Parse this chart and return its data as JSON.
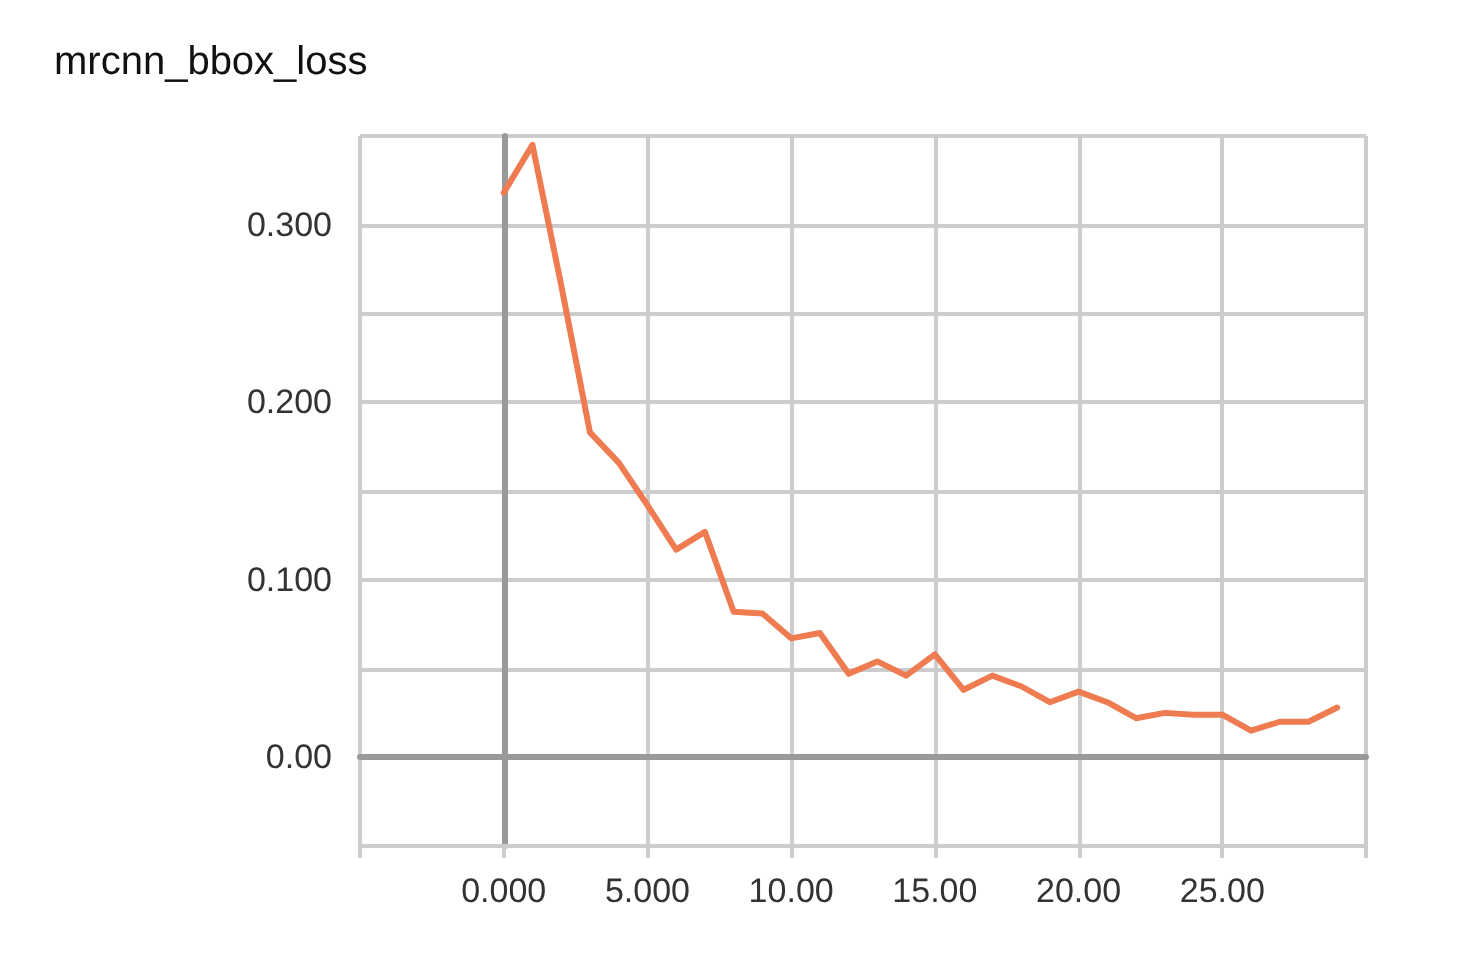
{
  "chart_data": {
    "type": "line",
    "title": "mrcnn_bbox_loss",
    "x": [
      0,
      1,
      2,
      3,
      4,
      5,
      6,
      7,
      8,
      9,
      10,
      11,
      12,
      13,
      14,
      15,
      16,
      17,
      18,
      19,
      20,
      21,
      22,
      23,
      24,
      25,
      26,
      27,
      28,
      29
    ],
    "series": [
      {
        "color": "#ef7b50",
        "values": [
          0.318,
          0.345,
          0.266,
          0.183,
          0.166,
          0.142,
          0.117,
          0.127,
          0.082,
          0.081,
          0.067,
          0.07,
          0.047,
          0.054,
          0.046,
          0.058,
          0.038,
          0.046,
          0.04,
          0.031,
          0.037,
          0.031,
          0.022,
          0.025,
          0.024,
          0.024,
          0.015,
          0.02,
          0.02,
          0.028
        ]
      }
    ],
    "xlim": [
      -5,
      30
    ],
    "xticks": [
      {
        "value": -5,
        "label": null
      },
      {
        "value": 0,
        "label": "0.000"
      },
      {
        "value": 5,
        "label": "5.000"
      },
      {
        "value": 10,
        "label": "10.00"
      },
      {
        "value": 15,
        "label": "15.00"
      },
      {
        "value": 20,
        "label": "20.00"
      },
      {
        "value": 25,
        "label": "25.00"
      },
      {
        "value": 30,
        "label": null
      }
    ],
    "ylim": [
      -0.05,
      0.35
    ],
    "yticks": [
      {
        "value": -0.05,
        "label": null
      },
      {
        "value": 0,
        "label": "0.00"
      },
      {
        "value": 0.05,
        "label": null
      },
      {
        "value": 0.1,
        "label": "0.100"
      },
      {
        "value": 0.15,
        "label": null
      },
      {
        "value": 0.2,
        "label": "0.200"
      },
      {
        "value": 0.25,
        "label": null
      },
      {
        "value": 0.3,
        "label": "0.300"
      },
      {
        "value": 0.35,
        "label": null
      }
    ],
    "grid": true,
    "marker": "none",
    "line_style": "solid"
  }
}
